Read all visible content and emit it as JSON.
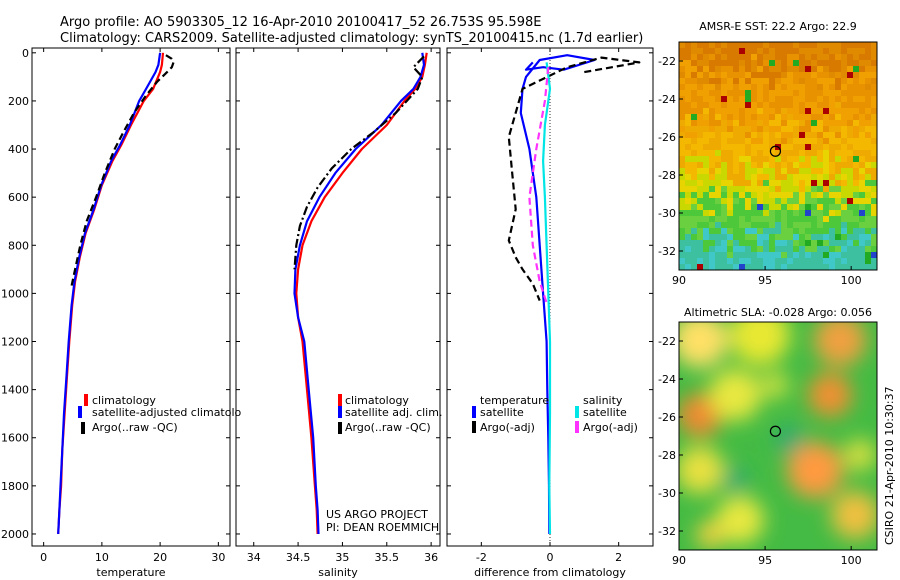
{
  "title_line1": "Argo profile: AO 5903305_12 16-Apr-2010 20100417_52 26.753S 95.598E",
  "title_line2": "Climatology: CARS2009. Satellite-adjusted climatology: synTS_20100415.nc (1.7d earlier)",
  "side_caption": "CSIRO 21-Apr-2010 10:30:37",
  "credit_line1": "US ARGO PROJECT",
  "credit_line2": "PI: DEAN ROEMMICH",
  "colors": {
    "climatology": "#ff0000",
    "satellite": "#0000ff",
    "argo": "#000000",
    "sal_satellite": "#00e5e5",
    "sal_argo": "#ff33ff"
  },
  "chart_data": [
    {
      "id": "temperature",
      "type": "line",
      "xlabel": "temperature",
      "ylabel": "",
      "xlim": [
        -2,
        32
      ],
      "ylim": [
        2050,
        -20
      ],
      "xticks": [
        0,
        10,
        20,
        30
      ],
      "yticks": [
        0,
        200,
        400,
        600,
        800,
        1000,
        1200,
        1400,
        1600,
        1800,
        2000
      ],
      "legend": [
        "climatology",
        "satellite-adjusted climatolo",
        "Argo(..raw -QC)"
      ],
      "series": [
        {
          "name": "climatology",
          "style": "solid",
          "color": "#ff0000",
          "x": [
            20.5,
            20.3,
            20.0,
            18.8,
            17.2,
            15.0,
            13.4,
            11.8,
            10.0,
            8.7,
            7.2,
            6.2,
            5.4,
            4.9,
            4.4,
            4.0,
            3.6,
            3.2,
            3.0,
            2.7,
            2.5
          ],
          "y": [
            0,
            50,
            80,
            150,
            200,
            300,
            380,
            450,
            550,
            650,
            750,
            850,
            950,
            1050,
            1200,
            1350,
            1500,
            1650,
            1800,
            1900,
            2000
          ]
        },
        {
          "name": "satellite-adjusted climatology",
          "style": "solid",
          "color": "#0000ff",
          "x": [
            20.0,
            19.7,
            19.2,
            17.6,
            16.4,
            14.8,
            13.2,
            11.6,
            9.9,
            8.6,
            7.1,
            6.1,
            5.3,
            4.8,
            4.3,
            3.9,
            3.5,
            3.2,
            2.9,
            2.7,
            2.5
          ],
          "y": [
            0,
            50,
            80,
            150,
            200,
            300,
            380,
            450,
            550,
            650,
            750,
            850,
            950,
            1050,
            1200,
            1350,
            1500,
            1650,
            1800,
            1900,
            2000
          ]
        },
        {
          "name": "Argo(..raw -QC)",
          "style": "dash",
          "color": "#000000",
          "x": [
            21.0,
            22.0,
            22.3,
            22.0,
            21.2,
            19.5,
            17.5,
            15.5,
            13.7,
            12.2,
            10.5,
            9.0,
            7.4,
            6.3,
            5.4,
            4.7
          ],
          "y": [
            10,
            25,
            40,
            60,
            80,
            120,
            180,
            250,
            330,
            400,
            500,
            600,
            700,
            800,
            900,
            980
          ]
        }
      ]
    },
    {
      "id": "salinity",
      "type": "line",
      "xlabel": "salinity",
      "ylabel": "",
      "xlim": [
        33.8,
        36.1
      ],
      "ylim": [
        2050,
        -20
      ],
      "xticks": [
        34,
        34.5,
        35,
        35.5,
        36
      ],
      "legend": [
        "climatology",
        "satellite adj. clim.",
        "Argo(..raw -QC)"
      ],
      "series": [
        {
          "name": "climatology",
          "style": "solid",
          "color": "#ff0000",
          "x": [
            35.95,
            35.93,
            35.9,
            35.82,
            35.7,
            35.5,
            35.22,
            35.0,
            34.8,
            34.65,
            34.55,
            34.5,
            34.48,
            34.5,
            34.55,
            34.6,
            34.65,
            34.69,
            34.71,
            34.72
          ],
          "y": [
            0,
            50,
            100,
            150,
            200,
            300,
            400,
            500,
            600,
            700,
            800,
            900,
            1000,
            1100,
            1200,
            1400,
            1600,
            1800,
            1900,
            2000
          ]
        },
        {
          "name": "satellite adj. clim.",
          "style": "solid",
          "color": "#0000ff",
          "x": [
            35.9,
            35.92,
            35.88,
            35.8,
            35.66,
            35.44,
            35.15,
            34.92,
            34.74,
            34.6,
            34.52,
            34.47,
            34.46,
            34.5,
            34.57,
            34.62,
            34.67,
            34.7,
            34.72,
            34.73
          ],
          "y": [
            0,
            50,
            100,
            150,
            200,
            300,
            400,
            500,
            600,
            700,
            800,
            900,
            1000,
            1100,
            1200,
            1400,
            1600,
            1800,
            1900,
            2000
          ]
        },
        {
          "name": "Argo(..raw -QC)",
          "style": "dashdot",
          "color": "#000000",
          "x": [
            35.92,
            35.8,
            35.9,
            35.85,
            35.6,
            35.35,
            35.1,
            34.88,
            34.72,
            34.6,
            34.52,
            34.48,
            34.46
          ],
          "y": [
            15,
            60,
            100,
            150,
            250,
            330,
            400,
            480,
            560,
            640,
            720,
            800,
            900
          ]
        }
      ]
    },
    {
      "id": "difference",
      "type": "line",
      "xlabel": "difference from climatology",
      "ylabel": "",
      "xlim": [
        -3,
        3
      ],
      "ylim": [
        2050,
        -20
      ],
      "xticks": [
        -2,
        0,
        2
      ],
      "legend_groups": [
        {
          "heading": "temperature",
          "items": [
            "satellite",
            "Argo(-adj)"
          ]
        },
        {
          "heading": "salinity",
          "items": [
            "satellite",
            "Argo(-adj)"
          ]
        }
      ],
      "series": [
        {
          "name": "temperature satellite",
          "style": "solid",
          "color": "#0000ff",
          "x": [
            -0.5,
            -0.7,
            -0.2,
            0.4,
            1.3,
            0.5,
            -0.3,
            -0.7,
            -0.8,
            -0.85,
            -0.6,
            -0.4,
            -0.3,
            -0.2,
            -0.1,
            -0.08,
            -0.05,
            -0.03,
            -0.02
          ],
          "y": [
            40,
            70,
            60,
            70,
            30,
            10,
            30,
            100,
            150,
            250,
            400,
            600,
            800,
            1000,
            1200,
            1400,
            1600,
            1800,
            2000
          ]
        },
        {
          "name": "temperature Argo(-adj)",
          "style": "dash",
          "color": "#000000",
          "x": [
            1.0,
            2.6,
            1.5,
            0.5,
            -0.8,
            -1.2,
            -1.1,
            -1.0,
            -1.2,
            -1.0,
            -0.8,
            -0.5,
            -0.3
          ],
          "y": [
            80,
            40,
            20,
            60,
            150,
            350,
            500,
            650,
            780,
            850,
            900,
            960,
            1030
          ]
        },
        {
          "name": "salinity satellite",
          "style": "solid",
          "color": "#00e5e5",
          "x": [
            -0.1,
            0.0,
            -0.15,
            -0.2,
            -0.15,
            -0.1,
            -0.05,
            0.0,
            0.0,
            -0.02,
            0.0
          ],
          "y": [
            40,
            150,
            300,
            450,
            600,
            800,
            1000,
            1200,
            1500,
            1800,
            2000
          ]
        },
        {
          "name": "salinity Argo(-adj)",
          "style": "dash",
          "color": "#ff33ff",
          "x": [
            -0.05,
            -0.15,
            -0.4,
            -0.6,
            -0.5,
            -0.3,
            -0.1
          ],
          "y": [
            60,
            200,
            400,
            600,
            800,
            950,
            1040
          ]
        }
      ]
    },
    {
      "id": "sst_map",
      "type": "heatmap",
      "title": "AMSR-E SST: 22.2 Argo: 22.9",
      "xlim": [
        90,
        101.5
      ],
      "ylim": [
        -33,
        -21
      ],
      "xticks": [
        90,
        95,
        100
      ],
      "yticks": [
        -22,
        -24,
        -26,
        -28,
        -30,
        -32
      ],
      "argo_position": {
        "lon": 95.6,
        "lat": -26.75
      }
    },
    {
      "id": "sla_map",
      "type": "heatmap",
      "title": "Altimetric SLA: -0.028 Argo: 0.056",
      "xlim": [
        90,
        101.5
      ],
      "ylim": [
        -33,
        -21
      ],
      "xticks": [
        90,
        95,
        100
      ],
      "yticks": [
        -22,
        -24,
        -26,
        -28,
        -30,
        -32
      ],
      "argo_position": {
        "lon": 95.6,
        "lat": -26.75
      }
    }
  ]
}
